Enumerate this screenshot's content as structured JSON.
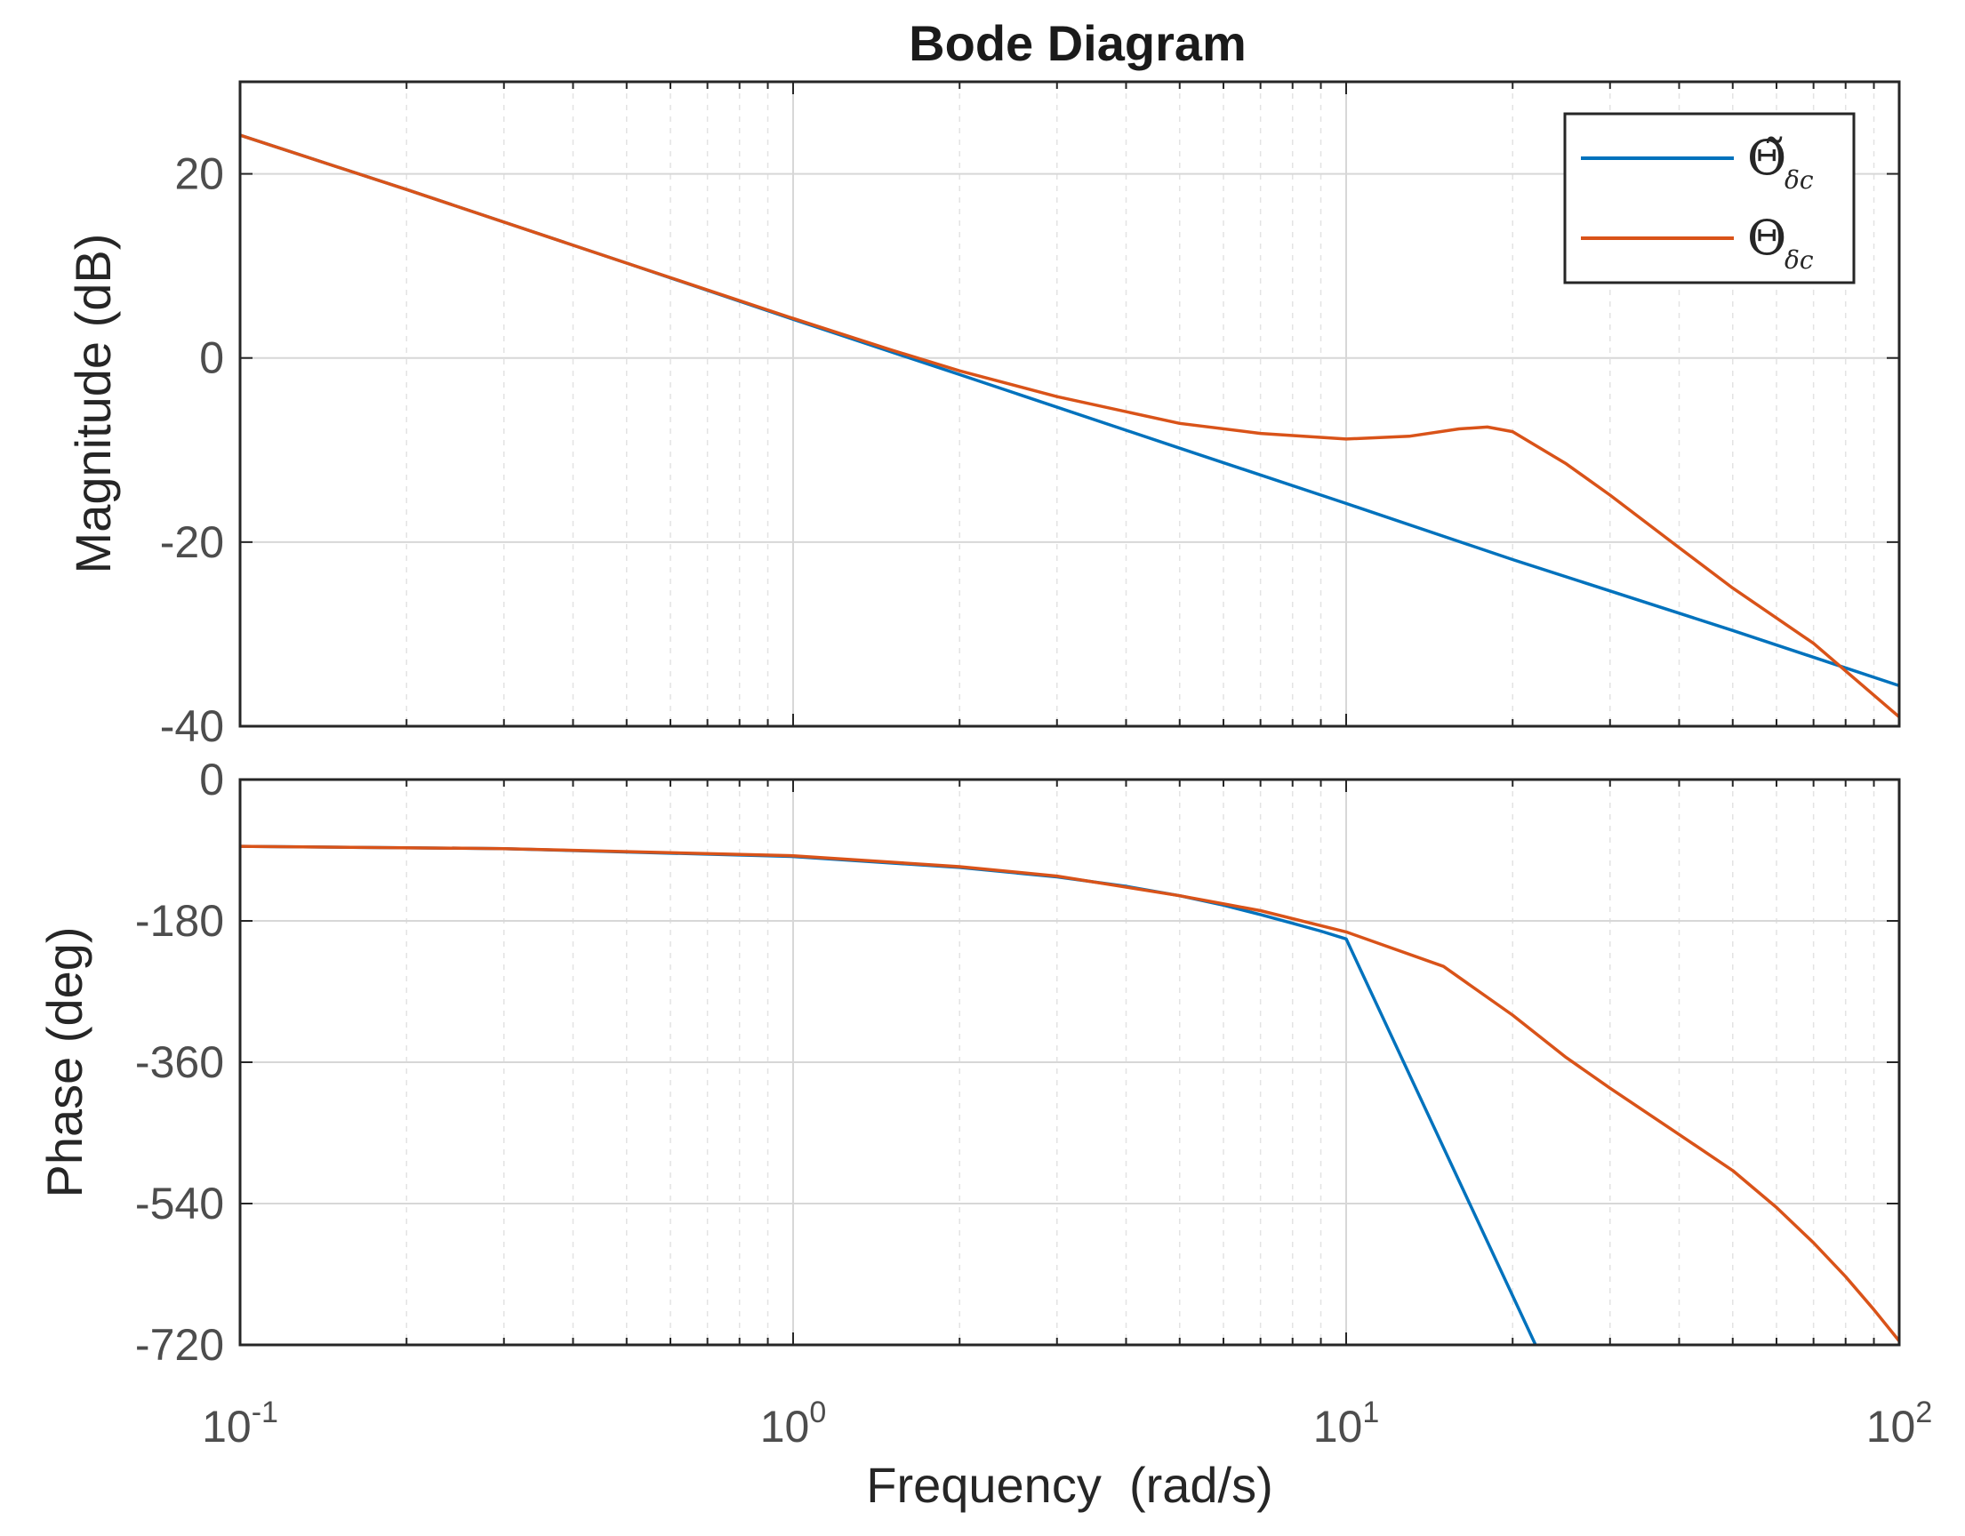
{
  "chart_data": {
    "type": "line",
    "title": "Bode Diagram",
    "xlabel": "Frequency  (rad/s)",
    "xscale": "log",
    "xlim": [
      0.1,
      100
    ],
    "xticks": [
      {
        "base": "10",
        "exp": "-1"
      },
      {
        "base": "10",
        "exp": "0"
      },
      {
        "base": "10",
        "exp": "1"
      },
      {
        "base": "10",
        "exp": "2"
      }
    ],
    "legend": {
      "location": "top-right",
      "entries": [
        {
          "symbol": "Θ̃",
          "subscript": "δc",
          "color": "#0072BD"
        },
        {
          "symbol": "Θ",
          "subscript": "δc",
          "color": "#D95319"
        }
      ]
    },
    "subplots": [
      {
        "name": "magnitude",
        "ylabel": "Magnitude (dB)",
        "ylim": [
          -40,
          30
        ],
        "yticks": [
          20,
          0,
          -20,
          -40
        ],
        "ytick_labels": [
          "20",
          "0",
          "-20",
          "-40"
        ],
        "series": [
          {
            "name": "Θ̃δc",
            "color": "#0072BD",
            "x": [
              0.1,
              0.2,
              0.5,
              1,
              2,
              5,
              10,
              20,
              50,
              100
            ],
            "y": [
              24.2,
              18.3,
              10.3,
              4.2,
              -1.8,
              -9.8,
              -15.8,
              -21.9,
              -29.6,
              -35.6
            ]
          },
          {
            "name": "Θδc",
            "color": "#D95319",
            "x": [
              0.1,
              0.2,
              0.5,
              1,
              1.5,
              2,
              3,
              5,
              7,
              10,
              13,
              16,
              18,
              20,
              25,
              30,
              40,
              50,
              70,
              100
            ],
            "y": [
              24.2,
              18.3,
              10.3,
              4.3,
              0.9,
              -1.4,
              -4.2,
              -7.1,
              -8.2,
              -8.8,
              -8.5,
              -7.7,
              -7.5,
              -8.0,
              -11.5,
              -14.9,
              -20.6,
              -25.0,
              -31.0,
              -39.0
            ]
          }
        ]
      },
      {
        "name": "phase",
        "ylabel": "Phase (deg)",
        "ylim": [
          -720,
          0
        ],
        "yticks": [
          0,
          -180,
          -360,
          -540,
          -720
        ],
        "ytick_labels": [
          "0",
          "-180",
          "-360",
          "-540",
          "-720"
        ],
        "series": [
          {
            "name": "Θ̃δc",
            "color": "#0072BD",
            "x": [
              0.1,
              0.3,
              1,
              2,
              3,
              4,
              5,
              6,
              7,
              8,
              9,
              10,
              22
            ],
            "y": [
              -85,
              -88,
              -98,
              -112,
              -124,
              -136,
              -148,
              -160,
              -172,
              -183,
              -193,
              -203,
              -720
            ]
          },
          {
            "name": "Θδc",
            "color": "#D95319",
            "x": [
              0.1,
              0.3,
              1,
              2,
              3,
              5,
              7,
              10,
              15,
              20,
              25,
              30,
              40,
              50,
              60,
              70,
              80,
              90,
              100
            ],
            "y": [
              -85,
              -88,
              -97,
              -111,
              -123,
              -148,
              -167,
              -194,
              -238,
              -300,
              -354,
              -393,
              -452,
              -498,
              -545,
              -590,
              -633,
              -675,
              -715
            ]
          }
        ]
      }
    ]
  }
}
